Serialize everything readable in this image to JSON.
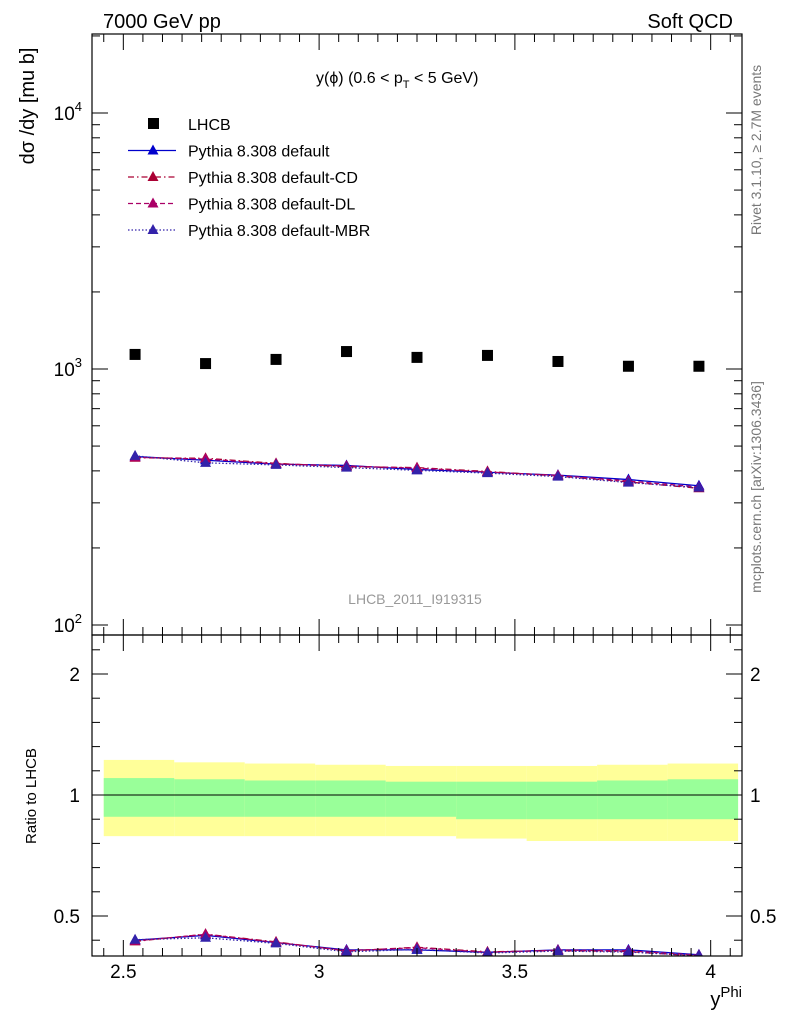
{
  "header": {
    "left": "7000 GeV pp",
    "right": "Soft QCD"
  },
  "side_labels": {
    "top": "Rivet 3.1.10, ≥ 2.7M events",
    "bottom": "mcplots.cern.ch [arXiv:1306.3436]"
  },
  "colors": {
    "lhcb": "#000000",
    "default": "#0000cc",
    "default_cd": "#aa0033",
    "default_dl": "#aa0066",
    "default_mbr": "#3322aa",
    "band_inner": "#99ff99",
    "band_outer": "#ffff99"
  },
  "chart_data": [
    {
      "type": "scatter",
      "panel": "main",
      "title": "y(ϕ) (0.6 < p_T < 5 GeV)",
      "title_parts": {
        "prefix": "y(ϕ) (0.6 < p",
        "sub": "T",
        "suffix": " < 5 GeV)"
      },
      "ylabel": "dσ /dy [mu b]",
      "watermark": "LHCB_2011_I919315",
      "y_scale": "log",
      "ylim": [
        100,
        20000
      ],
      "xlim": [
        2.42,
        4.08
      ],
      "x_ticks": [
        "2.5",
        "3",
        "3.5",
        "4"
      ],
      "y_tick_labels": [
        {
          "base": "10",
          "exp": "2"
        },
        {
          "base": "10",
          "exp": "3"
        },
        {
          "base": "10",
          "exp": "4"
        }
      ],
      "legend_position": "top-left",
      "x": [
        2.53,
        2.71,
        2.89,
        3.07,
        3.25,
        3.43,
        3.61,
        3.79,
        3.97
      ],
      "series": [
        {
          "name": "LHCB",
          "style": "data",
          "values": [
            1140,
            1050,
            1090,
            1170,
            1110,
            1130,
            1070,
            1025,
            1025
          ]
        },
        {
          "name": "Pythia 8.308 default",
          "style": "solid",
          "values": [
            455,
            440,
            425,
            420,
            405,
            395,
            385,
            370,
            350
          ]
        },
        {
          "name": "Pythia 8.308 default-CD",
          "style": "dashdot",
          "values": [
            450,
            448,
            428,
            415,
            412,
            398,
            382,
            362,
            342
          ]
        },
        {
          "name": "Pythia 8.308 default-DL",
          "style": "dashed",
          "values": [
            452,
            445,
            426,
            418,
            410,
            396,
            384,
            365,
            346
          ]
        },
        {
          "name": "Pythia 8.308 default-MBR",
          "style": "dotted",
          "values": [
            458,
            430,
            422,
            412,
            402,
            392,
            380,
            360,
            344
          ]
        }
      ]
    },
    {
      "type": "line",
      "panel": "ratio",
      "ylabel": "Ratio to LHCB",
      "xlabel_parts": {
        "base": "y",
        "sup": "Phi"
      },
      "ylim": [
        0.4,
        2.3
      ],
      "xlim": [
        2.42,
        4.08
      ],
      "y_ticks": [
        "0.5",
        "1",
        "2"
      ],
      "x": [
        2.53,
        2.71,
        2.89,
        3.07,
        3.25,
        3.43,
        3.61,
        3.79,
        3.97
      ],
      "band_edges": [
        2.45,
        2.63,
        2.81,
        2.99,
        3.17,
        3.35,
        3.53,
        3.71,
        3.89,
        4.07
      ],
      "band_inner": [
        [
          0.91,
          1.14
        ],
        [
          0.91,
          1.13
        ],
        [
          0.91,
          1.12
        ],
        [
          0.91,
          1.12
        ],
        [
          0.91,
          1.11
        ],
        [
          0.9,
          1.11
        ],
        [
          0.9,
          1.11
        ],
        [
          0.9,
          1.12
        ],
        [
          0.9,
          1.13
        ]
      ],
      "band_outer": [
        [
          0.83,
          1.29
        ],
        [
          0.83,
          1.27
        ],
        [
          0.83,
          1.26
        ],
        [
          0.83,
          1.25
        ],
        [
          0.83,
          1.24
        ],
        [
          0.82,
          1.24
        ],
        [
          0.81,
          1.24
        ],
        [
          0.81,
          1.25
        ],
        [
          0.81,
          1.26
        ]
      ],
      "series": [
        {
          "name": "Pythia 8.308 default",
          "values": [
            0.4,
            0.42,
            0.39,
            0.36,
            0.36,
            0.35,
            0.36,
            0.36,
            0.34
          ]
        },
        {
          "name": "Pythia 8.308 default-CD",
          "values": [
            0.395,
            0.425,
            0.393,
            0.355,
            0.371,
            0.352,
            0.357,
            0.353,
            0.334
          ]
        },
        {
          "name": "Pythia 8.308 default-DL",
          "values": [
            0.397,
            0.424,
            0.391,
            0.357,
            0.369,
            0.35,
            0.359,
            0.356,
            0.338
          ]
        },
        {
          "name": "Pythia 8.308 default-MBR",
          "values": [
            0.402,
            0.41,
            0.387,
            0.352,
            0.362,
            0.347,
            0.355,
            0.351,
            0.336
          ]
        }
      ]
    }
  ]
}
